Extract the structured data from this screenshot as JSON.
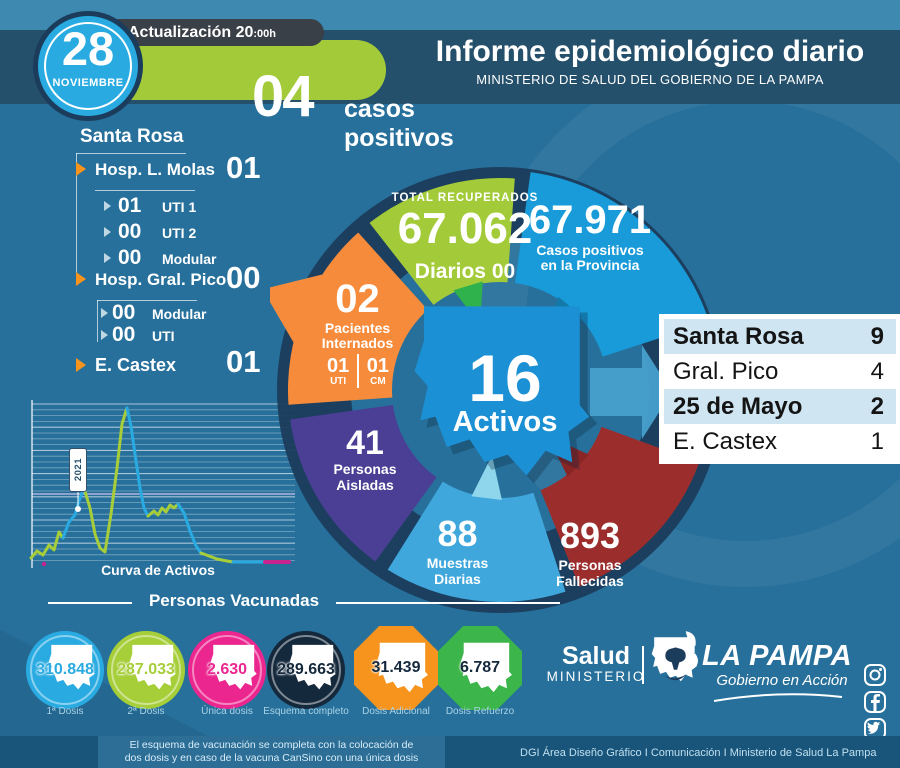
{
  "colors": {
    "bg": "#27709B",
    "band": "#24506C",
    "topstrip": "#3D89AF",
    "badge_dark": "#3A4047",
    "green": "#A3CB39",
    "blue": "#189BD8",
    "orange": "#F68B3B",
    "purple": "#4A3E95",
    "lightblue": "#3FA7DC",
    "red": "#9C2D2D",
    "navy": "#1C3C5C",
    "map_blue": "#1B90D4",
    "circle_blue": "#29ABE2",
    "circle_green": "#A6CE39",
    "circle_magenta": "#EC268F",
    "circle_navy": "#15293D",
    "oct_orange": "#F7941D",
    "oct_green": "#3CB54A",
    "table_row": "#CFE5F2",
    "strip": "#19547A",
    "chart_green": "#A7CE38",
    "chart_blue": "#29ABE2",
    "chart_magenta": "#C9238F"
  },
  "header": {
    "date_day": "28",
    "date_month": "NOVIEMBRE",
    "update_label": "Actualización",
    "update_time": "20",
    "update_suffix": ":00h",
    "cases_number": "04",
    "cases_label": "casos positivos",
    "title": "Informe epidemiológico diario",
    "subtitle": "MINISTERIO DE SALUD DEL GOBIERNO DE LA PAMPA"
  },
  "hospitals": {
    "city": "Santa Rosa",
    "molas": {
      "name": "Hosp. L. Molas",
      "value": "01",
      "sub": [
        {
          "value": "01",
          "label": "UTI 1"
        },
        {
          "value": "00",
          "label": "UTI 2"
        },
        {
          "value": "00",
          "label": "Modular"
        }
      ]
    },
    "pico": {
      "name": "Hosp. Gral. Pico",
      "value": "00",
      "sub": [
        {
          "value": "00",
          "label": "Modular"
        },
        {
          "value": "00",
          "label": "UTI"
        }
      ]
    },
    "castex": {
      "name": "E. Castex",
      "value": "01"
    }
  },
  "wheel": {
    "recovered": {
      "label": "TOTAL RECUPERADOS",
      "value": "67.062",
      "daily": "Diarios 00"
    },
    "positives": {
      "value": "67.971",
      "label1": "Casos positivos",
      "label2": "en la Provincia"
    },
    "inpatients": {
      "value": "02",
      "label1": "Pacientes",
      "label2": "Internados",
      "uti_value": "01",
      "uti_label": "UTI",
      "cm_value": "01",
      "cm_label": "CM"
    },
    "isolated": {
      "value": "41",
      "label1": "Personas",
      "label2": "Aisladas"
    },
    "samples": {
      "value": "88",
      "label1": "Muestras",
      "label2": "Diarias"
    },
    "deaths": {
      "value": "893",
      "label1": "Personas",
      "label2": "Fallecidas"
    },
    "active": {
      "value": "16",
      "label": "Activos"
    }
  },
  "cities_table": {
    "rows": [
      {
        "name": "Santa Rosa",
        "value": "9"
      },
      {
        "name": "Gral. Pico",
        "value": "4"
      },
      {
        "name": "25 de Mayo",
        "value": "2"
      },
      {
        "name": "E. Castex",
        "value": "1"
      }
    ]
  },
  "chart": {
    "title": "Curva de Activos",
    "annotation": "2021"
  },
  "chart_data": {
    "type": "line",
    "title": "Curva de Activos",
    "annotation": "2021",
    "x_axis": "time (unlabeled)",
    "y_axis": "active cases (tick labels illegible in source)",
    "segments": [
      {
        "color": "green",
        "points": [
          [
            4,
            162
          ],
          [
            10,
            155
          ],
          [
            16,
            159
          ],
          [
            22,
            149
          ],
          [
            27,
            154
          ],
          [
            32,
            136
          ],
          [
            36,
            142
          ]
        ]
      },
      {
        "color": "blue",
        "points": [
          [
            36,
            142
          ],
          [
            42,
            126
          ],
          [
            48,
            119
          ],
          [
            52,
            105
          ],
          [
            57,
            92
          ]
        ]
      },
      {
        "color": "green",
        "points": [
          [
            57,
            92
          ],
          [
            63,
            112
          ],
          [
            68,
            138
          ],
          [
            73,
            152
          ],
          [
            78,
            156
          ],
          [
            84,
            118
          ],
          [
            90,
            72
          ],
          [
            95,
            28
          ],
          [
            100,
            12
          ]
        ]
      },
      {
        "color": "blue",
        "points": [
          [
            100,
            12
          ],
          [
            104,
            30
          ],
          [
            108,
            58
          ],
          [
            113,
            92
          ],
          [
            117,
            112
          ],
          [
            121,
            120
          ]
        ]
      },
      {
        "color": "green",
        "points": [
          [
            121,
            120
          ],
          [
            127,
            115
          ],
          [
            131,
            119
          ],
          [
            135,
            112
          ],
          [
            139,
            116
          ],
          [
            143,
            109
          ],
          [
            147,
            112
          ],
          [
            151,
            108
          ]
        ]
      },
      {
        "color": "blue",
        "points": [
          [
            151,
            108
          ],
          [
            157,
            117
          ],
          [
            163,
            135
          ],
          [
            169,
            150
          ],
          [
            174,
            157
          ]
        ]
      },
      {
        "color": "green",
        "points": [
          [
            174,
            157
          ],
          [
            182,
            160
          ],
          [
            190,
            163
          ],
          [
            200,
            165
          ],
          [
            206,
            166
          ]
        ]
      },
      {
        "color": "blue",
        "points": [
          [
            206,
            166
          ],
          [
            220,
            166
          ],
          [
            236,
            166
          ]
        ]
      },
      {
        "color": "magenta",
        "points": [
          [
            238,
            166
          ],
          [
            262,
            166
          ]
        ]
      }
    ],
    "markers": [
      {
        "xy": [
          51,
          113
        ],
        "color": "white"
      },
      {
        "xy": [
          17,
          168
        ],
        "color": "magenta"
      }
    ]
  },
  "vaccination": {
    "title": "Personas Vacunadas",
    "badges": [
      {
        "value": "310.848",
        "label": "1ª Dosis"
      },
      {
        "value": "287.033",
        "label": "2ª Dosis"
      },
      {
        "value": "2.630",
        "label": "Única dosis"
      },
      {
        "value": "289.663",
        "label": "Esquema completo"
      },
      {
        "value": "31.439",
        "label": "Dosis Adicional"
      },
      {
        "value": "6.787",
        "label": "Dosis Refuerzo"
      }
    ],
    "footnote_line1": "El esquema de vacunación se completa con la colocación de",
    "footnote_line2": "dos dosis y en caso de la vacuna CanSino con una única dosis"
  },
  "branding": {
    "salud": "Salud",
    "ministerio": "MINISTERIO",
    "province": "LA PAMPA",
    "slogan": "Gobierno en Acción"
  },
  "footer": {
    "credits": "DGI Área Diseño Gráfico  I Comunicación I Ministerio de Salud La Pampa"
  }
}
